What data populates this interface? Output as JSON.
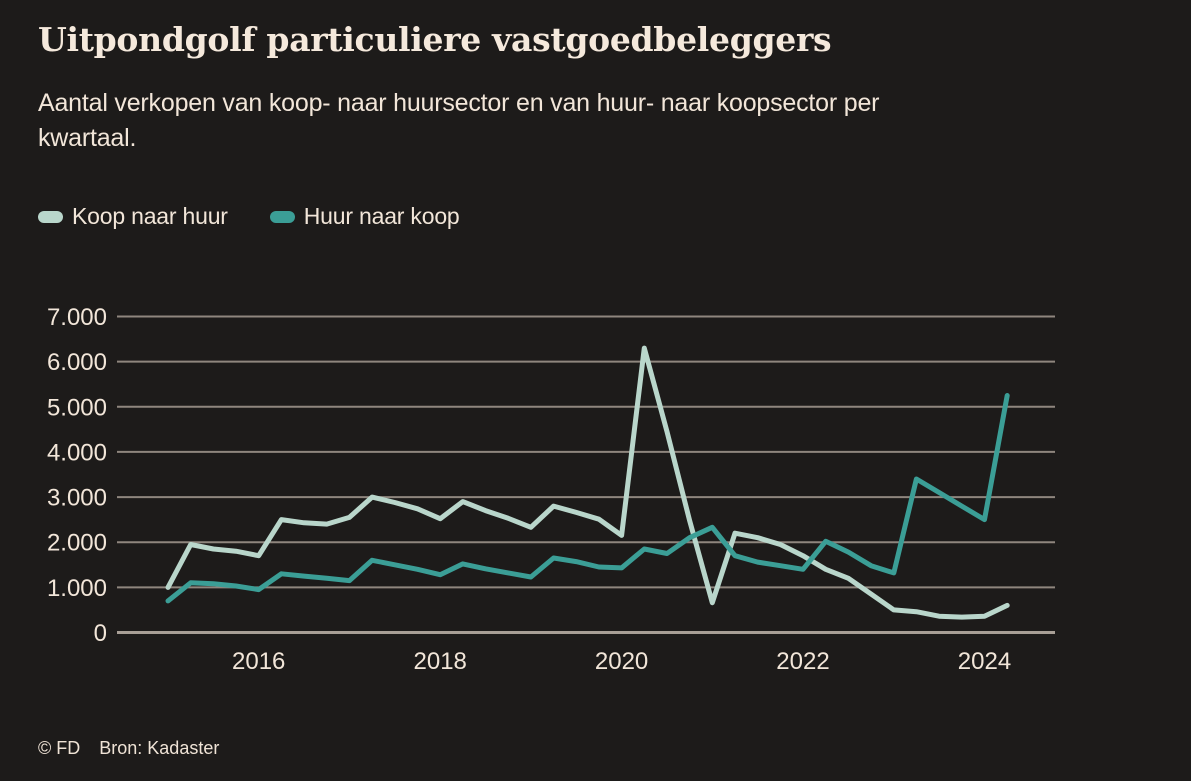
{
  "header": {
    "title": "Uitpondgolf particuliere vastgoedbeleggers",
    "subtitle_lines": [
      "Aantal verkopen van koop- naar huursector en van huur- naar koopsector per",
      "kwartaal."
    ]
  },
  "legend": {
    "items": [
      {
        "label": "Koop naar huur",
        "color": "#b9d6cb"
      },
      {
        "label": "Huur naar koop",
        "color": "#3b9e96"
      }
    ]
  },
  "footer": {
    "copyright": "© FD",
    "source": "Bron: Kadaster"
  },
  "colors": {
    "background": "#1d1b1a",
    "text": "#f2e6d9",
    "grid": "#8f867e",
    "axis": "#a89f96",
    "series_koop_naar_huur": "#b9d6cb",
    "series_huur_naar_koop": "#3b9e96"
  },
  "chart_data": {
    "type": "line",
    "title": "Uitpondgolf particuliere vastgoedbeleggers",
    "subtitle": "Aantal verkopen van koop- naar huursector en van huur- naar koopsector per kwartaal.",
    "xlabel": "",
    "ylabel": "",
    "ylim": [
      0,
      7000
    ],
    "grid": "horizontal",
    "legend_position": "top",
    "x": [
      "2015-K1",
      "2015-K2",
      "2015-K3",
      "2015-K4",
      "2016-K1",
      "2016-K2",
      "2016-K3",
      "2016-K4",
      "2017-K1",
      "2017-K2",
      "2017-K3",
      "2017-K4",
      "2018-K1",
      "2018-K2",
      "2018-K3",
      "2018-K4",
      "2019-K1",
      "2019-K2",
      "2019-K3",
      "2019-K4",
      "2020-K1",
      "2020-K2",
      "2020-K3",
      "2020-K4",
      "2021-K1",
      "2021-K2",
      "2021-K3",
      "2021-K4",
      "2022-K1",
      "2022-K2",
      "2022-K3",
      "2022-K4",
      "2023-K1",
      "2023-K2",
      "2023-K3",
      "2023-K4",
      "2024-K1",
      "2024-K2"
    ],
    "series": [
      {
        "name": "Koop naar huur",
        "color": "#b9d6cb",
        "values": [
          1000,
          1950,
          1850,
          1800,
          1700,
          2500,
          2430,
          2400,
          2550,
          3000,
          2880,
          2740,
          2520,
          2900,
          2700,
          2530,
          2330,
          2800,
          2660,
          2510,
          2150,
          6300,
          4450,
          2480,
          660,
          2200,
          2100,
          1950,
          1700,
          1400,
          1200,
          850,
          500,
          460,
          360,
          340,
          360,
          600
        ]
      },
      {
        "name": "Huur naar koop",
        "color": "#3b9e96",
        "values": [
          700,
          1100,
          1080,
          1030,
          950,
          1300,
          1250,
          1200,
          1150,
          1600,
          1500,
          1400,
          1280,
          1520,
          1410,
          1320,
          1230,
          1650,
          1570,
          1450,
          1430,
          1850,
          1750,
          2100,
          2330,
          1700,
          1560,
          1480,
          1400,
          2020,
          1780,
          1480,
          1320,
          3400,
          3100,
          2800,
          2500,
          5250
        ]
      }
    ],
    "yticks": [
      {
        "value": 0,
        "label": "0"
      },
      {
        "value": 1000,
        "label": "1.000"
      },
      {
        "value": 2000,
        "label": "2.000"
      },
      {
        "value": 3000,
        "label": "3.000"
      },
      {
        "value": 4000,
        "label": "4.000"
      },
      {
        "value": 5000,
        "label": "5.000"
      },
      {
        "value": 6000,
        "label": "6.000"
      },
      {
        "value": 7000,
        "label": "7.000"
      }
    ],
    "xticks": [
      {
        "label": "2016",
        "quarter_index": 4
      },
      {
        "label": "2018",
        "quarter_index": 12
      },
      {
        "label": "2020",
        "quarter_index": 20
      },
      {
        "label": "2022",
        "quarter_index": 28
      },
      {
        "label": "2024",
        "quarter_index": 36
      }
    ]
  }
}
